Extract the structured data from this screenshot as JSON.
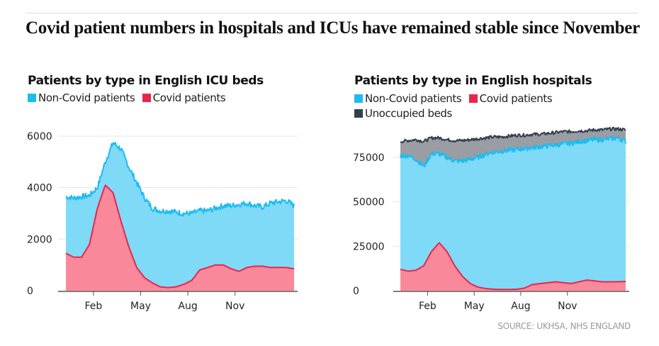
{
  "headline": "Covid patient numbers in hospitals and ICUs have remained stable since November",
  "source": "SOURCE: UKHSA, NHS ENGLAND",
  "colors": {
    "non_covid": "#1cbcf0",
    "non_covid_fill": "#7fdaf8",
    "covid": "#e8264a",
    "covid_fill": "#f9899a",
    "unoccupied": "#33404c",
    "unoccupied_fill": "#9a9ea4",
    "grid": "#e4e4e4",
    "axis": "#555555"
  },
  "chart_data": [
    {
      "type": "area",
      "title": "Patients by type in English ICU beds",
      "legend": [
        {
          "name": "Non-Covid patients",
          "color": "#1cbcf0"
        },
        {
          "name": "Covid patients",
          "color": "#e8264a"
        }
      ],
      "legend_position": "top-left",
      "xlabel": "",
      "ylabel": "",
      "x_tick_labels": [
        "Feb",
        "May",
        "Aug",
        "Nov"
      ],
      "y_ticks": [
        0,
        2000,
        4000,
        6000
      ],
      "ylim": [
        0,
        6000
      ],
      "grid": true,
      "x_months": [
        0,
        0.5,
        1,
        1.5,
        2,
        2.5,
        3,
        3.5,
        4,
        4.5,
        5,
        5.5,
        6,
        6.5,
        7,
        7.5,
        8,
        8.5,
        9,
        9.5,
        10,
        10.5,
        11,
        11.5,
        12,
        12.5,
        13,
        13.5,
        14,
        14.5
      ],
      "series": [
        {
          "name": "Total (Non-Covid + Covid)",
          "values": [
            3650,
            3600,
            3650,
            3700,
            4000,
            5000,
            5750,
            5500,
            4800,
            4200,
            3600,
            3200,
            3100,
            3100,
            3050,
            3000,
            3000,
            3100,
            3100,
            3200,
            3300,
            3300,
            3350,
            3400,
            3300,
            3250,
            3400,
            3450,
            3500,
            3300
          ]
        },
        {
          "name": "Covid patients",
          "values": [
            1450,
            1300,
            1300,
            1800,
            3200,
            4100,
            3800,
            2700,
            1700,
            900,
            500,
            300,
            150,
            120,
            150,
            250,
            400,
            800,
            900,
            1000,
            1000,
            850,
            750,
            900,
            950,
            950,
            900,
            900,
            900,
            850
          ]
        }
      ]
    },
    {
      "type": "area",
      "title": "Patients by type in English hospitals",
      "legend": [
        {
          "name": "Non-Covid patients",
          "color": "#1cbcf0"
        },
        {
          "name": "Covid patients",
          "color": "#e8264a"
        },
        {
          "name": "Unoccupied beds",
          "color": "#33404c"
        }
      ],
      "legend_position": "top-left",
      "xlabel": "",
      "ylabel": "",
      "x_tick_labels": [
        "Feb",
        "May",
        "Aug",
        "Nov"
      ],
      "y_ticks": [
        0,
        25000,
        50000,
        75000
      ],
      "ylim": [
        0,
        95000
      ],
      "grid": true,
      "x_months": [
        0,
        0.5,
        1,
        1.5,
        2,
        2.5,
        3,
        3.5,
        4,
        4.5,
        5,
        5.5,
        6,
        6.5,
        7,
        7.5,
        8,
        8.5,
        9,
        9.5,
        10,
        10.5,
        11,
        11.5,
        12,
        12.5,
        13,
        13.5,
        14,
        14.5
      ],
      "series": [
        {
          "name": "Total beds",
          "values": [
            84000,
            84500,
            85000,
            84000,
            86000,
            86000,
            85000,
            84500,
            84500,
            85000,
            85500,
            86000,
            86500,
            86500,
            87000,
            87500,
            87500,
            88000,
            88000,
            88500,
            89000,
            89500,
            89500,
            90000,
            90000,
            90500,
            90500,
            91000,
            91000,
            90500
          ]
        },
        {
          "name": "Non-Covid + Covid",
          "values": [
            76000,
            76000,
            74000,
            70000,
            77000,
            77000,
            75000,
            73000,
            73000,
            74000,
            75000,
            77000,
            78000,
            78500,
            79000,
            79500,
            80000,
            80500,
            81000,
            81500,
            82000,
            82500,
            83000,
            84000,
            84500,
            85000,
            85000,
            85500,
            86000,
            84000
          ]
        },
        {
          "name": "Covid patients",
          "values": [
            12000,
            11000,
            11500,
            14000,
            22000,
            27000,
            22000,
            14000,
            8000,
            4000,
            2000,
            1200,
            800,
            700,
            700,
            800,
            1500,
            3500,
            4000,
            4500,
            5000,
            4500,
            4000,
            5000,
            6000,
            5500,
            5000,
            5000,
            5000,
            5200
          ]
        }
      ]
    }
  ]
}
